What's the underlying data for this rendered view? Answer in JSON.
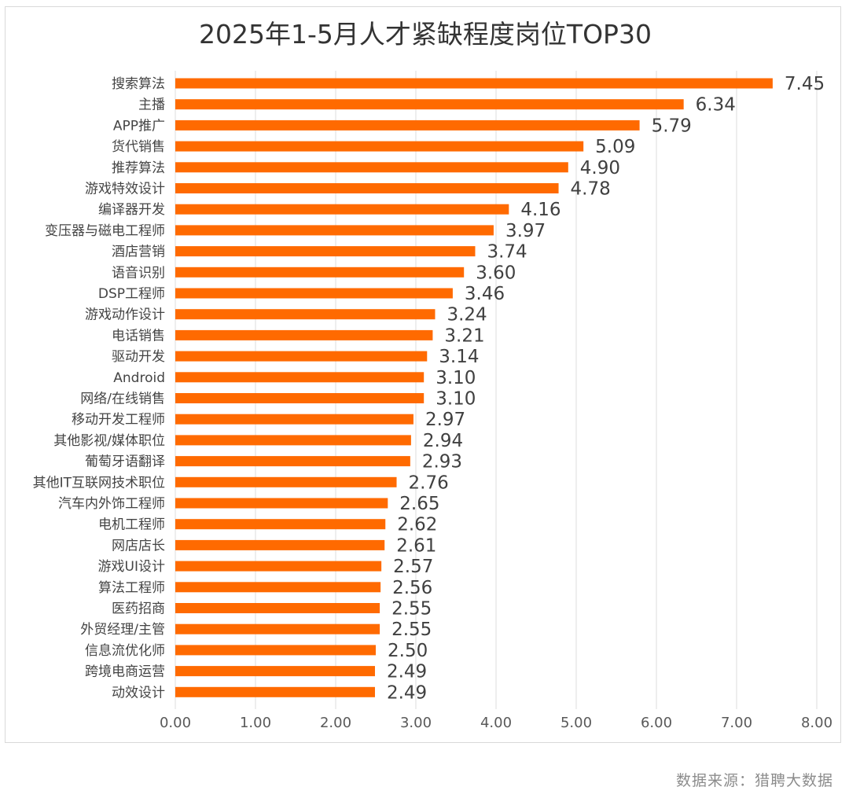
{
  "source_note": "数据来源：猎聘大数据",
  "colors": {
    "bar": "#FF6A00",
    "grid": "#E2E2E2",
    "text": "#333333"
  },
  "chart_data": {
    "type": "bar",
    "orientation": "horizontal",
    "title": "2025年1-5月人才紧缺程度岗位TOP30",
    "xlim": [
      0,
      8
    ],
    "x_ticks": [
      "0.00",
      "1.00",
      "2.00",
      "3.00",
      "4.00",
      "5.00",
      "6.00",
      "7.00",
      "8.00"
    ],
    "grid": "vertical",
    "categories": [
      "搜索算法",
      "主播",
      "APP推广",
      "货代销售",
      "推荐算法",
      "游戏特效设计",
      "编译器开发",
      "变压器与磁电工程师",
      "酒店营销",
      "语音识别",
      "DSP工程师",
      "游戏动作设计",
      "电话销售",
      "驱动开发",
      "Android",
      "网络/在线销售",
      "移动开发工程师",
      "其他影视/媒体职位",
      "葡萄牙语翻译",
      "其他IT互联网技术职位",
      "汽车内外饰工程师",
      "电机工程师",
      "网店店长",
      "游戏UI设计",
      "算法工程师",
      "医药招商",
      "外贸经理/主管",
      "信息流优化师",
      "跨境电商运营",
      "动效设计"
    ],
    "values": [
      7.45,
      6.34,
      5.79,
      5.09,
      4.9,
      4.78,
      4.16,
      3.97,
      3.74,
      3.6,
      3.46,
      3.24,
      3.21,
      3.14,
      3.1,
      3.1,
      2.97,
      2.94,
      2.93,
      2.76,
      2.65,
      2.62,
      2.61,
      2.57,
      2.56,
      2.55,
      2.55,
      2.5,
      2.49,
      2.49
    ],
    "value_labels": [
      "7.45",
      "6.34",
      "5.79",
      "5.09",
      "4.90",
      "4.78",
      "4.16",
      "3.97",
      "3.74",
      "3.60",
      "3.46",
      "3.24",
      "3.21",
      "3.14",
      "3.10",
      "3.10",
      "2.97",
      "2.94",
      "2.93",
      "2.76",
      "2.65",
      "2.62",
      "2.61",
      "2.57",
      "2.56",
      "2.55",
      "2.55",
      "2.50",
      "2.49",
      "2.49"
    ]
  }
}
